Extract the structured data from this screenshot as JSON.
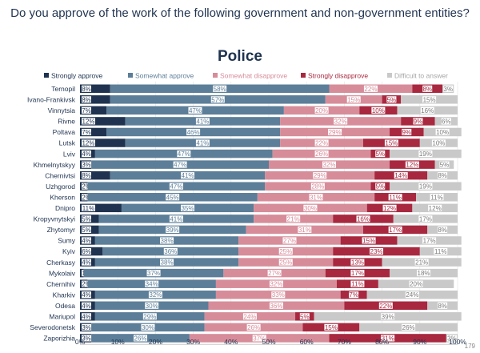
{
  "page": {
    "title": "Do you approve of the work of the following government and non-government entities?",
    "subtitle": "Police",
    "page_number": "179"
  },
  "chart_data": {
    "type": "bar",
    "orientation": "horizontal",
    "stacked": true,
    "title": "Police",
    "categories": [
      "Ternopil",
      "Ivano-Frankivsk",
      "Vinnytsia",
      "Rivne",
      "Poltava",
      "Lutsk",
      "Lviv",
      "Khmelnytskyy",
      "Chernivtsi",
      "Uzhgorod",
      "Kherson",
      "Dnipro",
      "Kropyvnytskyi",
      "Zhytomyr",
      "Sumy",
      "Kyiv",
      "Cherkasy",
      "Mykolaiv",
      "Chernihiv",
      "Kharkiv",
      "Odesa",
      "Mariupol",
      "Severodonetsk",
      "Zaporizhia"
    ],
    "series": [
      {
        "name": "Strongly approve",
        "color": "#1f3350",
        "values": [
          8,
          8,
          7,
          12,
          7,
          12,
          4,
          3,
          8,
          2,
          2,
          11,
          5,
          5,
          4,
          6,
          4,
          1,
          2,
          4,
          4,
          4,
          3,
          3
        ]
      },
      {
        "name": "Somewhat approve",
        "color": "#5c7e98",
        "values": [
          58,
          57,
          47,
          41,
          46,
          41,
          47,
          47,
          41,
          47,
          45,
          35,
          41,
          39,
          38,
          36,
          38,
          37,
          34,
          32,
          30,
          29,
          30,
          26
        ]
      },
      {
        "name": "Somewhat disapprove",
        "color": "#d78c9a",
        "values": [
          22,
          15,
          20,
          32,
          29,
          22,
          26,
          32,
          29,
          28,
          31,
          30,
          21,
          31,
          27,
          25,
          25,
          27,
          32,
          33,
          36,
          24,
          26,
          37
        ]
      },
      {
        "name": "Strongly disapprove",
        "color": "#a8283f",
        "values": [
          8,
          5,
          10,
          9,
          9,
          15,
          5,
          12,
          14,
          5,
          11,
          12,
          16,
          17,
          15,
          23,
          13,
          17,
          11,
          7,
          22,
          5,
          15,
          31
        ]
      },
      {
        "name": "Difficult to answer",
        "color": "#c9c9c9",
        "values": [
          3,
          15,
          16,
          6,
          10,
          10,
          19,
          5,
          8,
          19,
          11,
          12,
          17,
          8,
          17,
          11,
          21,
          18,
          20,
          24,
          8,
          39,
          26,
          3
        ]
      }
    ],
    "xlim": [
      0,
      100
    ],
    "xticks": [
      "0%",
      "10%",
      "20%",
      "30%",
      "40%",
      "50%",
      "60%",
      "70%",
      "80%",
      "90%",
      "100%"
    ],
    "legend_position": "top",
    "grid": true
  }
}
